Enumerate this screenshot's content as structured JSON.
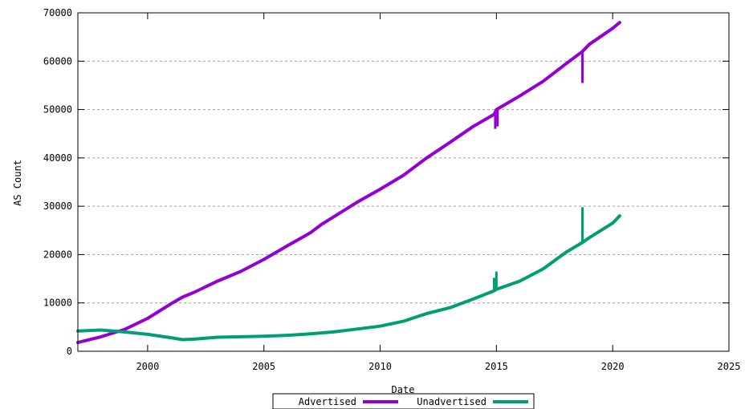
{
  "chart_data": {
    "type": "line",
    "title": "",
    "xlabel": "Date",
    "ylabel": "AS Count",
    "xlim": [
      1997,
      2025
    ],
    "ylim": [
      0,
      70000
    ],
    "x_ticks": [
      "2000",
      "2005",
      "2010",
      "2015",
      "2020",
      "2025"
    ],
    "y_ticks": [
      "0",
      "10000",
      "20000",
      "30000",
      "40000",
      "50000",
      "60000",
      "70000"
    ],
    "grid": "horizontal-dashed",
    "legend_position": "bottom-center",
    "series": [
      {
        "name": "Advertised",
        "color": "#9400d3",
        "x": [
          1997.0,
          1998.0,
          1999.0,
          2000.0,
          2001.0,
          2001.5,
          2002.0,
          2003.0,
          2004.0,
          2005.0,
          2006.0,
          2007.0,
          2007.5,
          2008.0,
          2009.0,
          2010.0,
          2011.0,
          2012.0,
          2013.0,
          2014.0,
          2014.9,
          2015.0,
          2016.0,
          2017.0,
          2018.0,
          2018.7,
          2019.0,
          2020.0,
          2020.3
        ],
        "y": [
          1800,
          3000,
          4500,
          6800,
          9800,
          11200,
          12200,
          14500,
          16500,
          19000,
          21800,
          24500,
          26300,
          27800,
          30800,
          33500,
          36400,
          40000,
          43200,
          46500,
          49000,
          50000,
          52800,
          55800,
          59500,
          62000,
          63500,
          66800,
          68000
        ],
        "spikes": [
          {
            "x": 2014.95,
            "y_low": 46000
          },
          {
            "x": 2015.05,
            "y_low": 46500
          },
          {
            "x": 2018.7,
            "y_low": 55500
          }
        ]
      },
      {
        "name": "Unadvertised",
        "color": "#009e73",
        "x": [
          1997.0,
          1998.0,
          1999.0,
          2000.0,
          2001.0,
          2001.5,
          2002.0,
          2003.0,
          2004.0,
          2005.0,
          2006.0,
          2007.0,
          2008.0,
          2009.0,
          2010.0,
          2011.0,
          2012.0,
          2013.0,
          2014.0,
          2014.9,
          2015.0,
          2016.0,
          2017.0,
          2018.0,
          2018.7,
          2019.0,
          2020.0,
          2020.3
        ],
        "y": [
          4200,
          4400,
          4000,
          3500,
          2800,
          2400,
          2500,
          2900,
          3000,
          3100,
          3300,
          3600,
          4000,
          4600,
          5200,
          6200,
          7800,
          9000,
          10800,
          12500,
          12800,
          14500,
          17000,
          20500,
          22500,
          23500,
          26500,
          28000
        ],
        "spikes": [
          {
            "x": 2014.9,
            "y_high": 15200
          },
          {
            "x": 2015.0,
            "y_high": 16500
          },
          {
            "x": 2018.7,
            "y_high": 29800
          }
        ]
      }
    ]
  }
}
